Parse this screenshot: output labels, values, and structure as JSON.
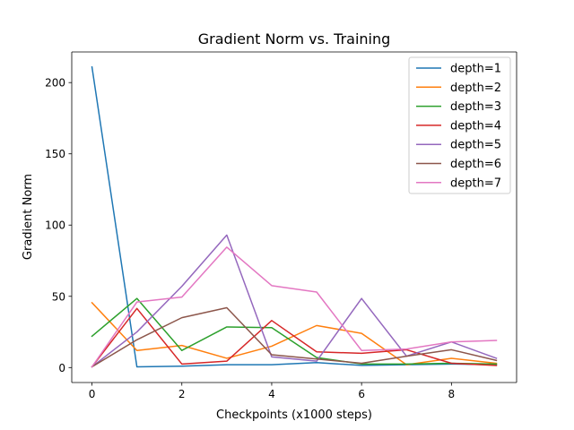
{
  "chart_data": {
    "type": "line",
    "title": "Gradient Norm vs. Training",
    "xlabel": "Checkpoints (x1000 steps)",
    "ylabel": "Gradient Norm",
    "x": [
      0,
      1,
      2,
      3,
      4,
      5,
      6,
      7,
      8,
      9
    ],
    "xlim": [
      -0.45,
      9.45
    ],
    "ylim": [
      -10.5,
      221.5
    ],
    "xticks": [
      0,
      2,
      4,
      6,
      8
    ],
    "yticks": [
      0,
      50,
      100,
      150,
      200
    ],
    "grid": false,
    "legend_position": "top-right",
    "series": [
      {
        "name": "depth=1",
        "color": "#1f77b4",
        "values": [
          211,
          0.5,
          1.0,
          2.0,
          2.0,
          3.5,
          1.5,
          2.0,
          2.5,
          2.0
        ]
      },
      {
        "name": "depth=2",
        "color": "#ff7f0e",
        "values": [
          45.5,
          12,
          15.5,
          6.5,
          15,
          29.5,
          24,
          2.0,
          6.5,
          3.0
        ]
      },
      {
        "name": "depth=3",
        "color": "#2ca02c",
        "values": [
          22,
          48.5,
          12,
          28.5,
          28,
          7,
          2.5,
          2.5,
          3.0,
          2.5
        ]
      },
      {
        "name": "depth=4",
        "color": "#d62728",
        "values": [
          0.5,
          41.5,
          2.5,
          4.5,
          33,
          11,
          10,
          12.5,
          3.0,
          1.5
        ]
      },
      {
        "name": "depth=5",
        "color": "#9467bd",
        "values": [
          0.5,
          25,
          57,
          93,
          7.5,
          4.5,
          48.5,
          8,
          18,
          6.5
        ]
      },
      {
        "name": "depth=6",
        "color": "#8c564b",
        "values": [
          0.5,
          19.5,
          35,
          42,
          9,
          6,
          3.0,
          8,
          12.5,
          5
        ]
      },
      {
        "name": "depth=7",
        "color": "#e377c2",
        "values": [
          0.5,
          46,
          49.5,
          84.5,
          57.5,
          53,
          12,
          13,
          18,
          19
        ]
      }
    ]
  }
}
